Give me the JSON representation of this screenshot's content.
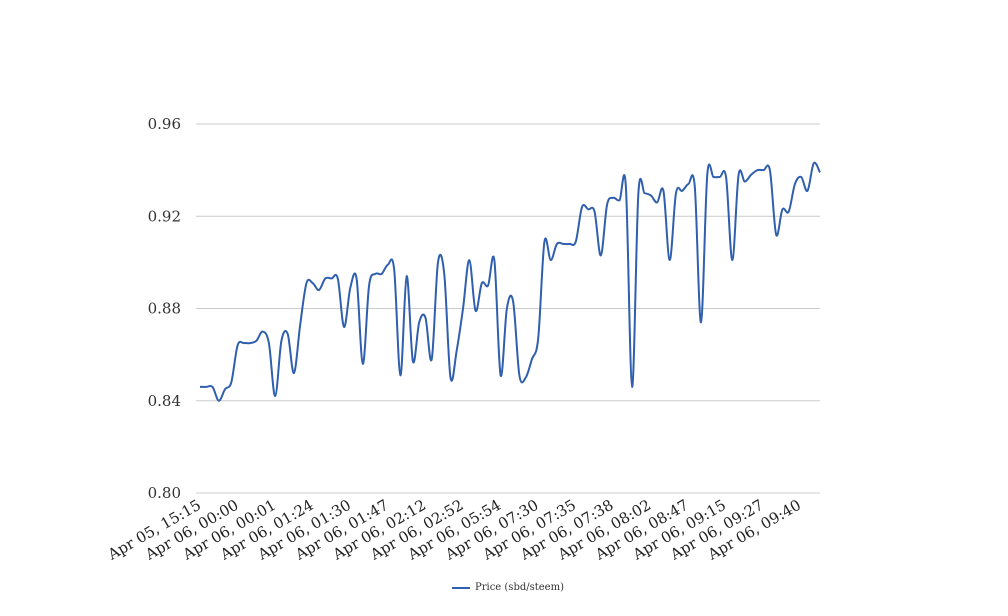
{
  "chart_data": {
    "type": "line",
    "title": "",
    "xlabel": "",
    "ylabel": "",
    "ylim": [
      0.8,
      0.96
    ],
    "yticks": [
      "0.80",
      "0.84",
      "0.88",
      "0.92",
      "0.96"
    ],
    "xticks": [
      "Apr 05, 15:15",
      "Apr 06, 00:00",
      "Apr 06, 00:01",
      "Apr 06, 01:24",
      "Apr 06, 01:30",
      "Apr 06, 01:47",
      "Apr 06, 02:12",
      "Apr 06, 02:52",
      "Apr 06, 05:54",
      "Apr 06, 07:30",
      "Apr 06, 07:35",
      "Apr 06, 07:38",
      "Apr 06, 08:02",
      "Apr 06, 08:47",
      "Apr 06, 09:15",
      "Apr 06, 09:27",
      "Apr 06, 09:40"
    ],
    "grid": true,
    "legend_position": "bottom",
    "colors": {
      "line": "#2f5fad",
      "grid": "#cccccc"
    },
    "series": [
      {
        "name": "Price (sbd/steem)",
        "values": [
          0.846,
          0.846,
          0.846,
          0.84,
          0.845,
          0.848,
          0.864,
          0.865,
          0.865,
          0.866,
          0.87,
          0.865,
          0.842,
          0.866,
          0.869,
          0.852,
          0.873,
          0.891,
          0.891,
          0.888,
          0.893,
          0.893,
          0.893,
          0.872,
          0.889,
          0.893,
          0.856,
          0.89,
          0.895,
          0.895,
          0.899,
          0.897,
          0.851,
          0.894,
          0.857,
          0.874,
          0.876,
          0.858,
          0.9,
          0.895,
          0.85,
          0.862,
          0.88,
          0.901,
          0.879,
          0.891,
          0.89,
          0.901,
          0.851,
          0.88,
          0.883,
          0.851,
          0.85,
          0.858,
          0.867,
          0.909,
          0.901,
          0.908,
          0.908,
          0.908,
          0.909,
          0.924,
          0.923,
          0.922,
          0.903,
          0.925,
          0.928,
          0.927,
          0.933,
          0.846,
          0.93,
          0.93,
          0.929,
          0.926,
          0.931,
          0.901,
          0.93,
          0.931,
          0.934,
          0.933,
          0.874,
          0.938,
          0.937,
          0.937,
          0.937,
          0.901,
          0.938,
          0.935,
          0.938,
          0.94,
          0.94,
          0.94,
          0.912,
          0.923,
          0.922,
          0.934,
          0.937,
          0.931,
          0.943,
          0.939
        ]
      }
    ]
  }
}
